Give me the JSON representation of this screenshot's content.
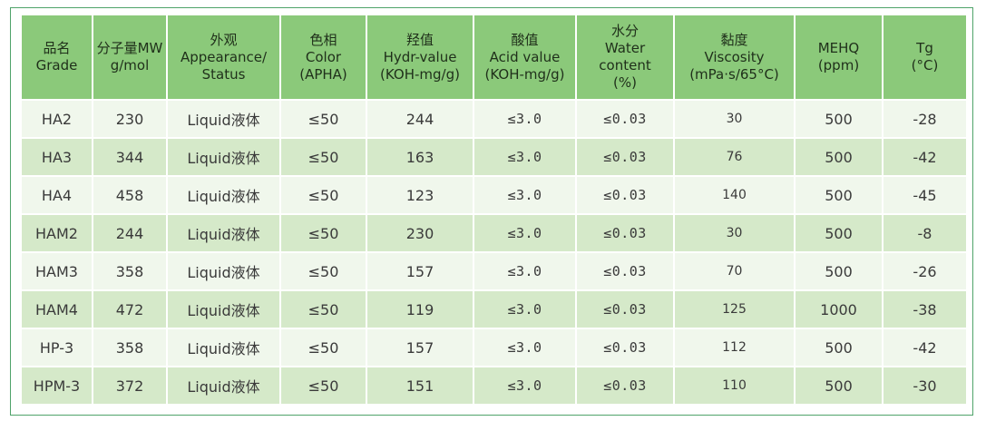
{
  "headers": [
    [
      "品名",
      "Grade"
    ],
    [
      "分子量MW",
      "g/mol"
    ],
    [
      "外观",
      "Appearance/",
      "Status"
    ],
    [
      "色相",
      "Color",
      "(APHA)"
    ],
    [
      "羟值",
      "Hydr-value",
      "(KOH-mg/g)"
    ],
    [
      "酸值",
      "Acid value",
      "(KOH-mg/g)"
    ],
    [
      "水分",
      "Water",
      "content",
      "(%)"
    ],
    [
      "黏度",
      "Viscosity",
      "(mPa·s/65°C)"
    ],
    [
      "MEHQ",
      "(ppm)"
    ],
    [
      "Tg",
      "(°C)"
    ]
  ],
  "rows": [
    [
      "HA2",
      "230",
      "Liquid液体",
      "≤50",
      "244",
      "≤3.0",
      "≤0.03",
      "30",
      "500",
      "-28"
    ],
    [
      "HA3",
      "344",
      "Liquid液体",
      "≤50",
      "163",
      "≤3.0",
      "≤0.03",
      "76",
      "500",
      "-42"
    ],
    [
      "HA4",
      "458",
      "Liquid液体",
      "≤50",
      "123",
      "≤3.0",
      "≤0.03",
      "140",
      "500",
      "-45"
    ],
    [
      "HAM2",
      "244",
      "Liquid液体",
      "≤50",
      "230",
      "≤3.0",
      "≤0.03",
      "30",
      "500",
      "-8"
    ],
    [
      "HAM3",
      "358",
      "Liquid液体",
      "≤50",
      "157",
      "≤3.0",
      "≤0.03",
      "70",
      "500",
      "-26"
    ],
    [
      "HAM4",
      "472",
      "Liquid液体",
      "≤50",
      "119",
      "≤3.0",
      "≤0.03",
      "125",
      "1000",
      "-38"
    ],
    [
      "HP-3",
      "358",
      "Liquid液体",
      "≤50",
      "157",
      "≤3.0",
      "≤0.03",
      "112",
      "500",
      "-42"
    ],
    [
      "HPM-3",
      "372",
      "Liquid液体",
      "≤50",
      "151",
      "≤3.0",
      "≤0.03",
      "110",
      "500",
      "-30"
    ]
  ]
}
